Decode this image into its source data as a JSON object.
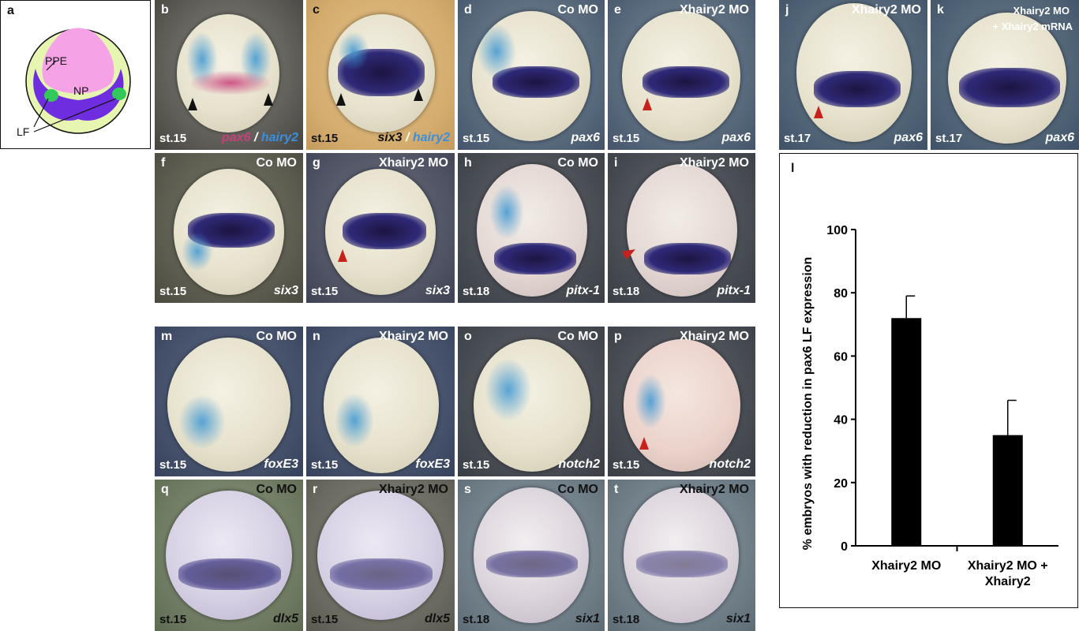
{
  "panel_a": {
    "letter": "a",
    "labels": {
      "ppe": "PPE",
      "np": "NP",
      "lf": "LF"
    }
  },
  "panels": [
    {
      "id": "b",
      "letter": "b",
      "condition": "",
      "stage": "st.15",
      "gene": "",
      "gene_parts": [
        "pax6",
        " / ",
        "hairy2"
      ]
    },
    {
      "id": "c",
      "letter": "c",
      "condition": "",
      "stage": "st.15",
      "gene": "",
      "gene_parts": [
        "six3",
        " / ",
        "hairy2"
      ]
    },
    {
      "id": "d",
      "letter": "d",
      "condition": "Co MO",
      "stage": "st.15",
      "gene": "pax6"
    },
    {
      "id": "e",
      "letter": "e",
      "condition": "Xhairy2 MO",
      "stage": "st.15",
      "gene": "pax6"
    },
    {
      "id": "j",
      "letter": "j",
      "condition": "Xhairy2 MO",
      "stage": "st.17",
      "gene": "pax6"
    },
    {
      "id": "k",
      "letter": "k",
      "condition": "Xhairy2 MO",
      "condition2": "+ Xhairy2 mRNA",
      "stage": "st.17",
      "gene": "pax6"
    },
    {
      "id": "f",
      "letter": "f",
      "condition": "Co MO",
      "stage": "st.15",
      "gene": "six3"
    },
    {
      "id": "g",
      "letter": "g",
      "condition": "Xhairy2 MO",
      "stage": "st.15",
      "gene": "six3"
    },
    {
      "id": "h",
      "letter": "h",
      "condition": "Co MO",
      "stage": "st.18",
      "gene": "pitx-1"
    },
    {
      "id": "i",
      "letter": "i",
      "condition": "Xhairy2 MO",
      "stage": "st.18",
      "gene": "pitx-1"
    },
    {
      "id": "m",
      "letter": "m",
      "condition": "Co MO",
      "stage": "st.15",
      "gene": "foxE3"
    },
    {
      "id": "n",
      "letter": "n",
      "condition": "Xhairy2 MO",
      "stage": "st.15",
      "gene": "foxE3"
    },
    {
      "id": "o",
      "letter": "o",
      "condition": "Co MO",
      "stage": "st.15",
      "gene": "notch2"
    },
    {
      "id": "p",
      "letter": "p",
      "condition": "Xhairy2 MO",
      "stage": "st.15",
      "gene": "notch2"
    },
    {
      "id": "q",
      "letter": "q",
      "condition": "Co MO",
      "stage": "st.15",
      "gene": "dlx5"
    },
    {
      "id": "r",
      "letter": "r",
      "condition": "Xhairy2 MO",
      "stage": "st.15",
      "gene": "dlx5"
    },
    {
      "id": "s",
      "letter": "s",
      "condition": "Co MO",
      "stage": "st.18",
      "gene": "six1"
    },
    {
      "id": "t",
      "letter": "t",
      "condition": "Xhairy2 MO",
      "stage": "st.18",
      "gene": "six1"
    }
  ],
  "chart_data": {
    "type": "bar",
    "panel_letter": "l",
    "categories": [
      "Xhairy2 MO",
      "Xhairy2 MO + Xhairy2"
    ],
    "category_lines": [
      [
        "Xhairy2 MO"
      ],
      [
        "Xhairy2 MO +",
        "Xhairy2"
      ]
    ],
    "values": [
      72,
      35
    ],
    "errors": [
      7,
      11
    ],
    "ylabel": "% embryos with reduction in pax6 LF expression",
    "xlabel": "",
    "ylim": [
      0,
      100
    ],
    "yticks": [
      0,
      20,
      40,
      60,
      80,
      100
    ],
    "grid": false,
    "bar_color": "#000000"
  },
  "colors": {
    "pax6_label": "#c8407a",
    "hairy2_label": "#3a8fe0",
    "arrow_red": "#c8201a",
    "np_fill": "#f5a3e6",
    "ppe_fill": "#e6f5b0",
    "lf_fill": "#33c85a",
    "band_fill": "#6f2de0"
  }
}
